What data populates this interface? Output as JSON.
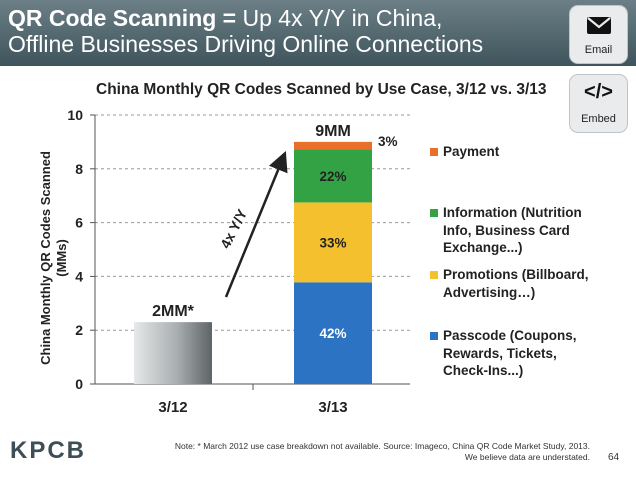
{
  "header": {
    "title_bold": "QR Code Scanning =",
    "title_rest": " Up 4x Y/Y in China,",
    "title_line2": "Offline Businesses Driving Online Connections"
  },
  "share": {
    "email_label": "Email",
    "embed_label": "Embed",
    "embed_symbol": "</>"
  },
  "chart_data": {
    "type": "bar",
    "stacked": true,
    "title": "China Monthly QR Codes Scanned by Use Case, 3/12 vs. 3/13",
    "ylabel": "China Monthly QR Codes Scanned (MMs)",
    "ylabel_lines": [
      "China Monthly QR Codes Scanned",
      "(MMs)"
    ],
    "xlabel": "",
    "ylim": [
      0,
      10
    ],
    "yticks": [
      0,
      2,
      4,
      6,
      8,
      10
    ],
    "grid": true,
    "categories": [
      "3/12",
      "3/13"
    ],
    "bars": [
      {
        "category": "3/12",
        "total": 2.3,
        "total_label": "2MM*",
        "segments": [
          {
            "series": "All use cases (breakdown not available)",
            "value": 2.3,
            "label": "",
            "color": "#8d9496"
          }
        ]
      },
      {
        "category": "3/13",
        "total": 9.0,
        "total_label": "9MM",
        "segments": [
          {
            "series": "Passcode (Coupons, Rewards, Tickets, Check-Ins...)",
            "value": 3.78,
            "label": "42%",
            "color": "#2d73c3"
          },
          {
            "series": "Promotions (Billboard, Advertising...)",
            "value": 2.97,
            "label": "33%",
            "color": "#f4c02d"
          },
          {
            "series": "Information (Nutrition Info, Business Card Exchange...)",
            "value": 1.98,
            "label": "22%",
            "color": "#33a244"
          },
          {
            "series": "Payment",
            "value": 0.27,
            "label": "3%",
            "color": "#e8702b"
          }
        ]
      }
    ],
    "annotation": "4x Y/Y",
    "legend": [
      {
        "label": "Payment",
        "color": "#e8702b"
      },
      {
        "label": "Information (Nutrition Info, Business Card Exchange...)",
        "label_lines": "Information (Nutrition\nInfo, Business Card\nExchange...)",
        "color": "#33a244"
      },
      {
        "label": "Promotions (Billboard, Advertising…)",
        "label_lines": "Promotions (Billboard,\nAdvertising…)",
        "color": "#f4c02d"
      },
      {
        "label": "Passcode (Coupons, Rewards, Tickets, Check-Ins...)",
        "label_lines": "Passcode (Coupons,\nRewards, Tickets,\nCheck-Ins...)",
        "color": "#2d73c3"
      }
    ],
    "legend_position": "right"
  },
  "footer": {
    "logo": "KPCB",
    "note_line1": "Note: * March 2012 use case breakdown not available. Source: Imageco, China QR Code Market Study, 2013.",
    "note_line2": "We believe data are understated.",
    "page_number": "64"
  }
}
